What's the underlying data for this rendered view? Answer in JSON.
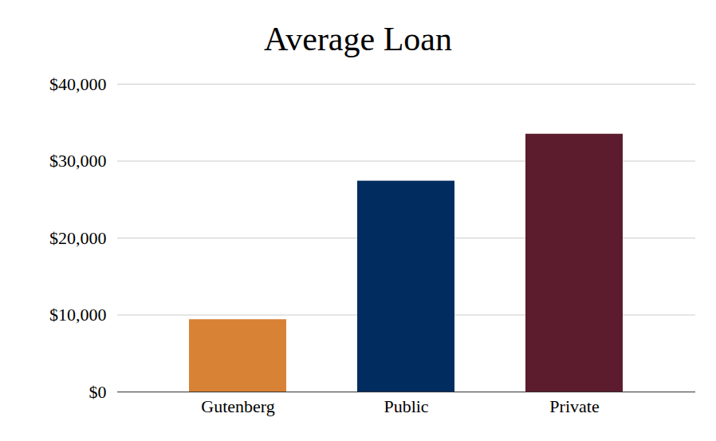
{
  "chart_data": {
    "type": "bar",
    "title": "Average Loan",
    "categories": [
      "Gutenberg",
      "Public",
      "Private"
    ],
    "values": [
      9400,
      27400,
      33500
    ],
    "colors": [
      "#d88236",
      "#002c5f",
      "#5c1c2e"
    ],
    "ylim": [
      0,
      40000
    ],
    "yticks": [
      {
        "value": 0,
        "label": "$0"
      },
      {
        "value": 10000,
        "label": "$10,000"
      },
      {
        "value": 20000,
        "label": "$20,000"
      },
      {
        "value": 30000,
        "label": "$30,000"
      },
      {
        "value": 40000,
        "label": "$40,000"
      }
    ],
    "grid": true
  }
}
